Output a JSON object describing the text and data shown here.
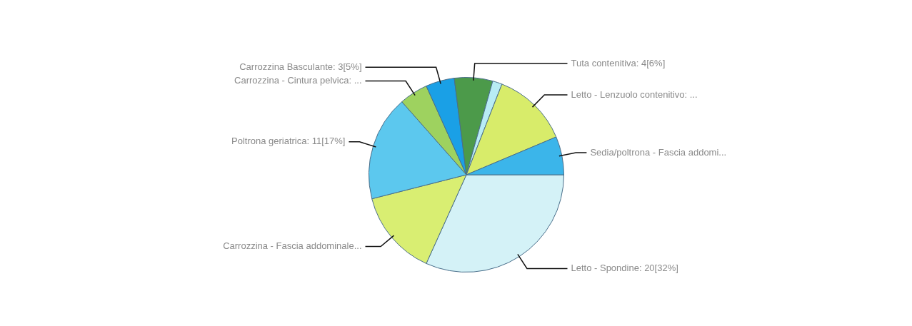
{
  "chart_data": {
    "type": "pie",
    "categories": [
      "Letto - Spondine: 20[32%]",
      "Carrozzina - Fascia addominale...",
      "Poltrona geriatrica: 11[17%]",
      "Carrozzina - Cintura pelvica: ...",
      "Carrozzina Basculante: 3[5%]",
      "Tuta contenitiva: 4[6%]",
      null,
      "Letto - Lenzuolo contenitivo: ...",
      "Sedia/poltrona - Fascia addomi..."
    ],
    "values": [
      20,
      9,
      11,
      3,
      3,
      4,
      1,
      8,
      4
    ],
    "colors": [
      "#d4f2f7",
      "#d9ee72",
      "#5cc8ee",
      "#9ed25f",
      "#1aa0e6",
      "#4c9a4a",
      "#b8ecf5",
      "#d8ec6a",
      "#3bb5ea"
    ],
    "legend": false
  }
}
